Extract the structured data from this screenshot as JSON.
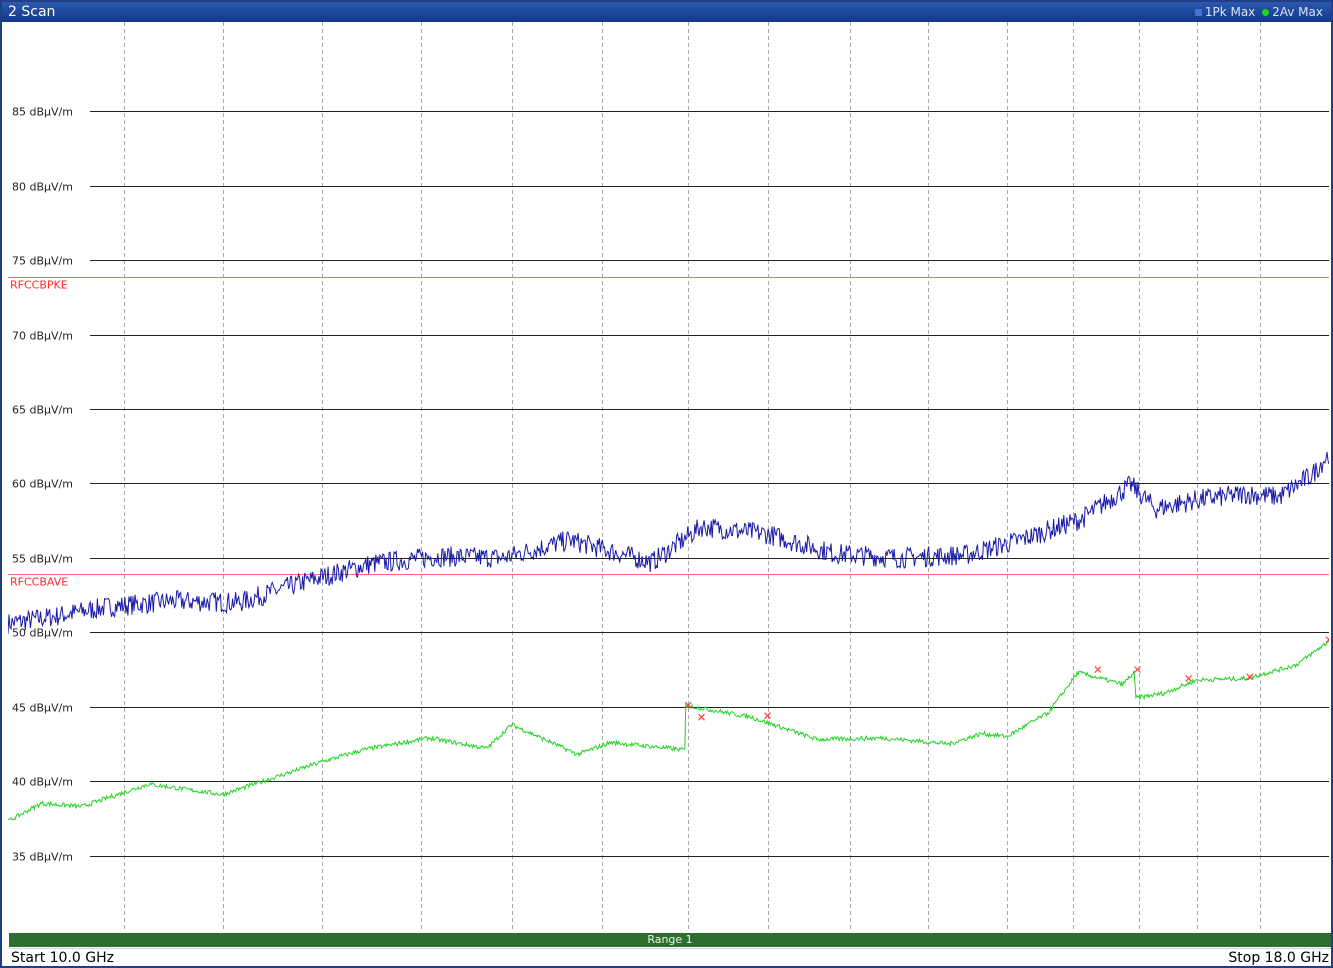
{
  "window": {
    "title": "2 Scan"
  },
  "legend": [
    {
      "label": "1Pk Max",
      "color": "#1a1aa8"
    },
    {
      "label": "2Av Max",
      "color": "#22d422"
    }
  ],
  "footer": {
    "start": "Start 10.0 GHz",
    "stop": "Stop 18.0 GHz",
    "range": "Range 1"
  },
  "chart_data": {
    "type": "line",
    "x_unit": "GHz",
    "xlim": [
      10.0,
      18.0
    ],
    "ylim": [
      30,
      91
    ],
    "y_ticks": [
      35,
      40,
      45,
      50,
      55,
      60,
      65,
      70,
      75,
      80,
      85
    ],
    "y_tick_labels": [
      "35 dBµV/m",
      "40 dBµV/m",
      "45 dBµV/m",
      "50 dBµV/m",
      "55 dBµV/m",
      "60 dBµV/m",
      "65 dBµV/m",
      "70 dBµV/m",
      "75 dBµV/m",
      "80 dBµV/m",
      "85 dBµV/m"
    ],
    "vertical_grid_x": [
      10.7,
      11.3,
      11.9,
      12.5,
      13.05,
      13.6,
      14.12,
      14.6,
      15.1,
      15.57,
      16.05,
      16.45,
      16.85,
      17.2,
      17.58
    ],
    "grid": true,
    "limit_lines": [
      {
        "name": "RFCCBPKE",
        "y": 73.9,
        "color": "#ff6a6a"
      },
      {
        "name": "RFCCBAVE",
        "y": 53.9,
        "color": "#ff6a6a"
      }
    ],
    "series": [
      {
        "name": "1Pk Max",
        "color": "#1a1aa8",
        "x": [
          10.0,
          10.3,
          10.6,
          11.0,
          11.4,
          11.8,
          12.2,
          12.6,
          13.0,
          13.4,
          13.9,
          14.2,
          14.6,
          15.0,
          15.4,
          15.8,
          16.1,
          16.5,
          16.8,
          16.95,
          17.2,
          17.5,
          17.7,
          17.9,
          18.0
        ],
        "values": [
          50.6,
          51.1,
          51.7,
          52.1,
          52.0,
          53.4,
          54.6,
          55.1,
          55.0,
          56.2,
          54.7,
          57.1,
          56.6,
          55.3,
          55.0,
          55.2,
          56.1,
          57.6,
          59.9,
          58.3,
          58.9,
          59.3,
          59.1,
          60.6,
          62.0
        ],
        "noise": 0.7
      },
      {
        "name": "2Av Max",
        "color": "#22d422",
        "x": [
          10.0,
          10.2,
          10.45,
          10.85,
          11.3,
          11.9,
          12.15,
          12.55,
          12.9,
          13.05,
          13.45,
          13.65,
          14.1,
          14.1,
          14.5,
          14.9,
          15.3,
          15.7,
          15.9,
          16.05,
          16.3,
          16.48,
          16.75,
          16.82,
          16.83,
          17.0,
          17.2,
          17.5,
          17.8,
          18.0
        ],
        "values": [
          37.3,
          38.5,
          38.3,
          39.8,
          39.1,
          41.3,
          42.1,
          42.9,
          42.2,
          43.8,
          41.8,
          42.6,
          42.1,
          45.1,
          44.3,
          42.8,
          42.9,
          42.5,
          43.2,
          43.0,
          44.6,
          47.3,
          46.5,
          47.3,
          45.6,
          45.9,
          46.8,
          46.9,
          47.8,
          49.4
        ],
        "noise": 0.15
      }
    ],
    "markers": {
      "series": "2Av Max",
      "color": "#ff3b3b",
      "x": [
        14.12,
        14.2,
        14.6,
        16.6,
        16.84,
        17.15,
        17.52,
        18.0
      ],
      "y": [
        45.1,
        44.3,
        44.4,
        47.5,
        47.5,
        46.9,
        47.0,
        49.5
      ]
    }
  }
}
